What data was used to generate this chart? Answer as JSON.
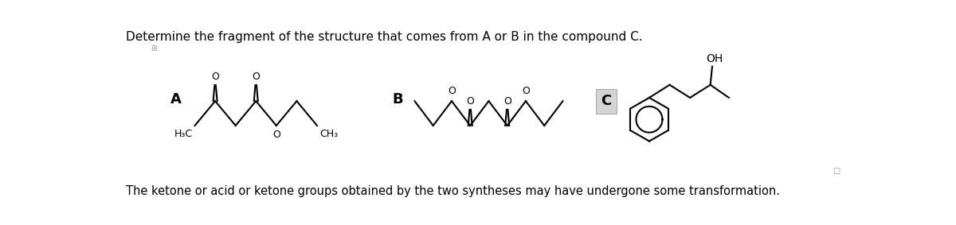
{
  "title": "Determine the fragment of the structure that comes from A or B in the compound C.",
  "footnote": "The ketone or acid or ketone groups obtained by the two syntheses may have undergone some transformation.",
  "bg": "#ffffff",
  "lc": "#000000",
  "label_A": "A",
  "label_B": "B",
  "label_C": "C",
  "title_fontsize": 11,
  "footnote_fontsize": 10.5,
  "label_fontsize": 13,
  "chem_fontsize": 9,
  "lw": 1.5
}
